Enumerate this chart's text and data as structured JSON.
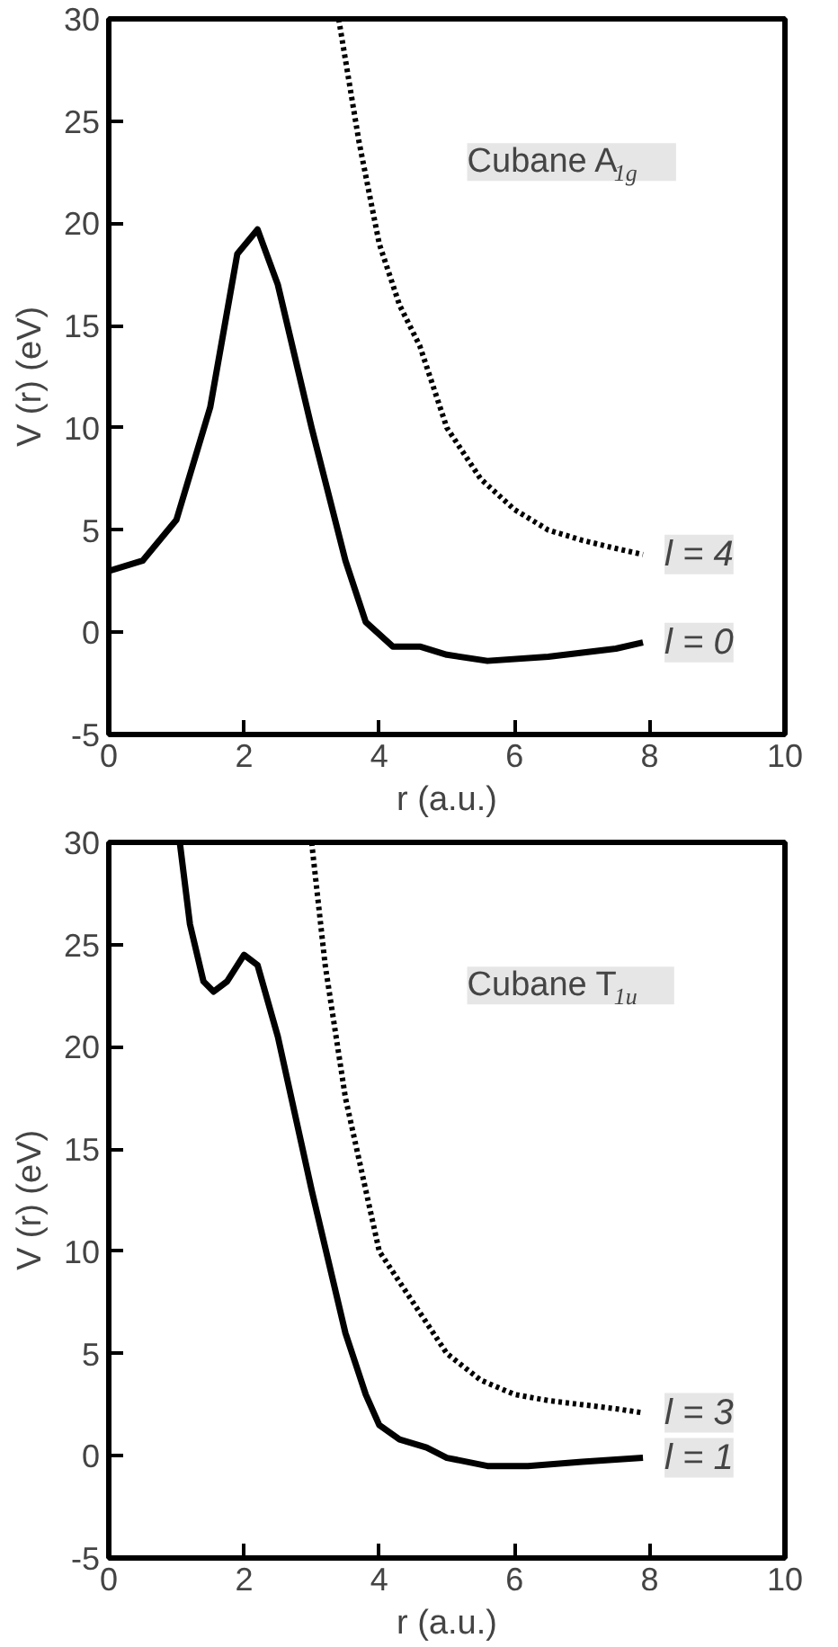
{
  "chart_data": [
    {
      "type": "line",
      "xlabel": "r (a.u.)",
      "ylabel": "V (r) (eV)",
      "xlim": [
        0,
        10
      ],
      "ylim": [
        -5,
        30
      ],
      "xticks": [
        0,
        2,
        4,
        6,
        8,
        10
      ],
      "yticks": [
        -5,
        0,
        5,
        10,
        15,
        20,
        25,
        30
      ],
      "grid": false,
      "annotations": [
        "Cubane A$_{1g}$"
      ],
      "series": [
        {
          "name": "l = 4",
          "color": "#000000",
          "line_style": "dotted",
          "x": [
            3.4,
            3.7,
            4.0,
            4.3,
            4.6,
            5.0,
            5.5,
            6.0,
            6.5,
            7.0,
            7.5,
            7.9
          ],
          "values": [
            30,
            24,
            19,
            16,
            14,
            10,
            7.5,
            6,
            5,
            4.5,
            4.1,
            3.8
          ]
        },
        {
          "name": "l = 0",
          "color": "#000000",
          "line_style": "solid",
          "x": [
            0,
            0.5,
            1.0,
            1.5,
            1.9,
            2.2,
            2.5,
            3.0,
            3.5,
            3.8,
            4.2,
            4.6,
            5.0,
            5.6,
            6.5,
            7.5,
            7.9
          ],
          "values": [
            3,
            3.5,
            5.5,
            11,
            18.5,
            19.7,
            17,
            10,
            3.5,
            0.5,
            -0.7,
            -0.7,
            -1.1,
            -1.4,
            -1.2,
            -0.8,
            -0.5
          ]
        }
      ]
    },
    {
      "type": "line",
      "xlabel": "r (a.u.)",
      "ylabel": "V (r) (eV)",
      "xlim": [
        0,
        10
      ],
      "ylim": [
        -5,
        30
      ],
      "xticks": [
        0,
        2,
        4,
        6,
        8,
        10
      ],
      "yticks": [
        -5,
        0,
        5,
        10,
        15,
        20,
        25,
        30
      ],
      "grid": false,
      "annotations": [
        "Cubane T$_{1u}$"
      ],
      "series": [
        {
          "name": "l = 3",
          "color": "#000000",
          "line_style": "dotted",
          "x": [
            3.0,
            3.2,
            3.5,
            3.8,
            4.0,
            4.3,
            4.6,
            5.0,
            5.5,
            6.0,
            6.5,
            7.0,
            7.5,
            7.9
          ],
          "values": [
            30,
            24,
            17.5,
            13,
            10,
            8.5,
            7,
            5,
            3.7,
            3,
            2.7,
            2.5,
            2.3,
            2.1
          ]
        },
        {
          "name": "l = 1",
          "color": "#000000",
          "line_style": "solid",
          "x": [
            1.05,
            1.2,
            1.4,
            1.55,
            1.75,
            2.0,
            2.2,
            2.5,
            3.0,
            3.5,
            3.8,
            4.0,
            4.3,
            4.7,
            5.0,
            5.6,
            6.2,
            7.0,
            7.9
          ],
          "values": [
            30,
            26,
            23.2,
            22.7,
            23.2,
            24.5,
            24,
            20.5,
            13,
            6,
            3,
            1.5,
            0.8,
            0.4,
            -0.1,
            -0.5,
            -0.5,
            -0.3,
            -0.1
          ]
        }
      ]
    }
  ]
}
